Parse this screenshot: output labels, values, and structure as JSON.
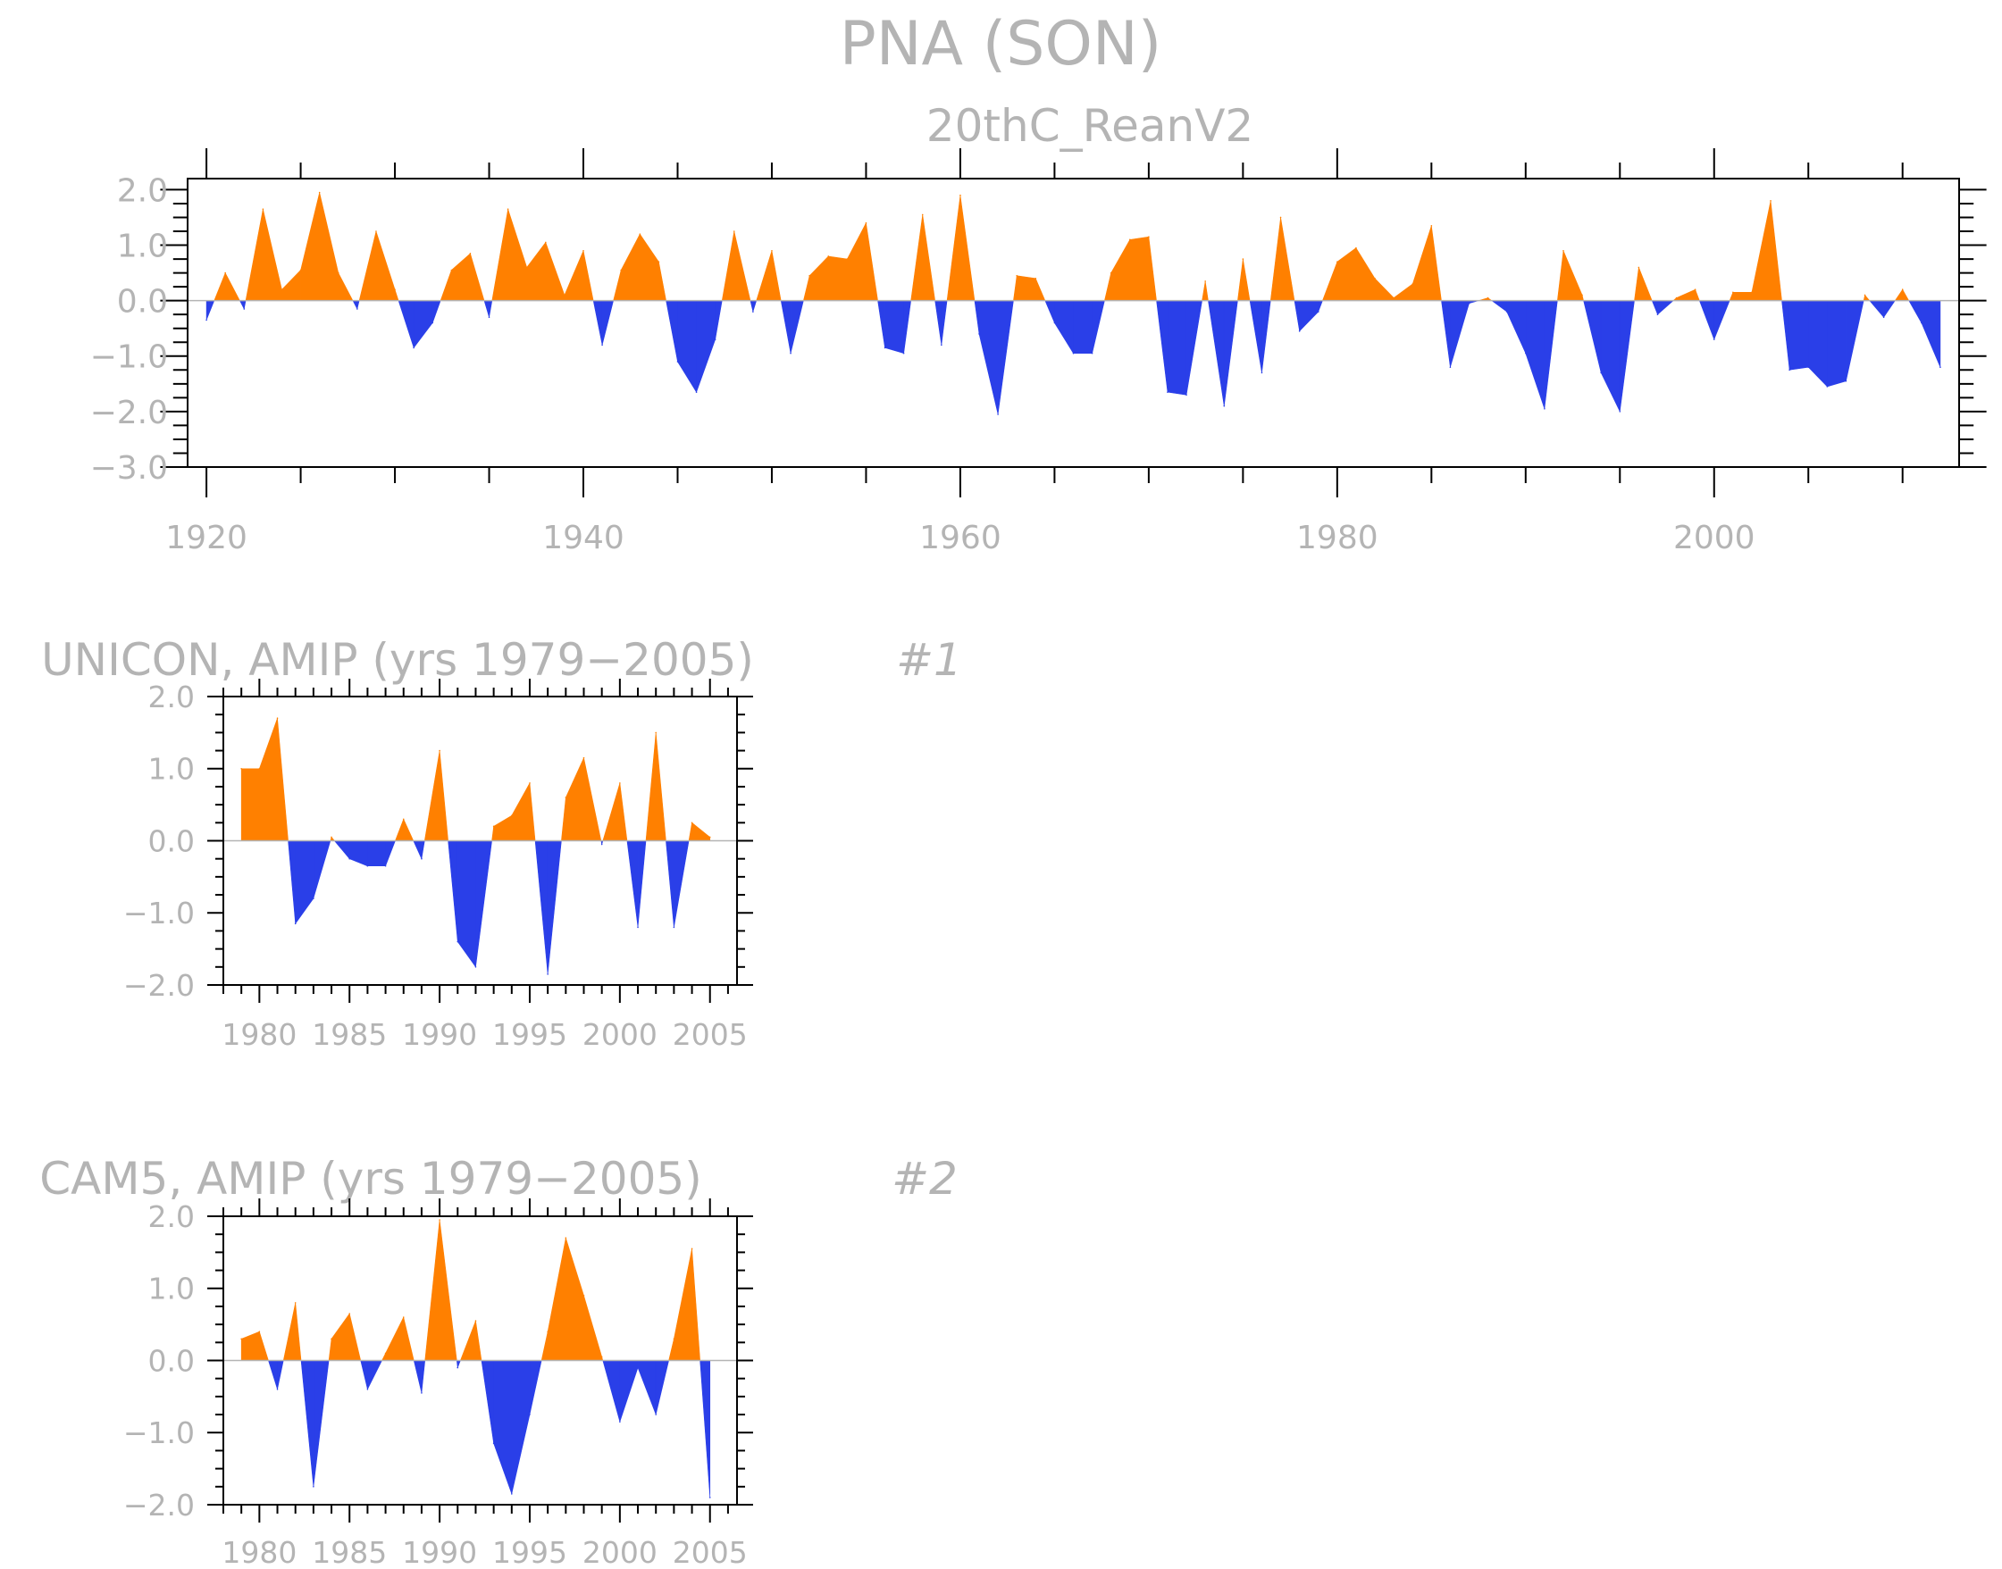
{
  "title": "PNA (SON)",
  "colors": {
    "positive": "#ff8000",
    "negative": "#2a3fe8",
    "text": "#b4b4b4",
    "axis": "#000000"
  },
  "chart_data": [
    {
      "type": "area",
      "title": "20thC_ReanV2",
      "panel_label": "",
      "xlim": [
        1919,
        2013
      ],
      "ylim": [
        -3.0,
        2.2
      ],
      "yticks": [
        "2.0",
        "1.0",
        "0.0",
        "−1.0",
        "−2.0",
        "−3.0"
      ],
      "ytick_values": [
        2.0,
        1.0,
        0.0,
        -1.0,
        -2.0,
        -3.0
      ],
      "xticks": [
        "1920",
        "1940",
        "1960",
        "1980",
        "2000"
      ],
      "xtick_values": [
        1920,
        1940,
        1960,
        1980,
        2000
      ],
      "x_start": 1920,
      "values": [
        -0.35,
        0.5,
        -0.15,
        1.65,
        0.2,
        0.55,
        1.95,
        0.5,
        -0.15,
        1.25,
        0.2,
        -0.85,
        -0.4,
        0.55,
        0.85,
        -0.3,
        1.65,
        0.6,
        1.05,
        0.1,
        0.9,
        -0.8,
        0.55,
        1.2,
        0.7,
        -1.1,
        -1.65,
        -0.7,
        1.25,
        -0.2,
        0.9,
        -0.95,
        0.45,
        0.8,
        0.75,
        1.4,
        -0.85,
        -0.95,
        1.55,
        -0.8,
        1.9,
        -0.6,
        -2.05,
        0.45,
        0.4,
        -0.4,
        -0.95,
        -0.95,
        0.5,
        1.1,
        1.15,
        -1.65,
        -1.7,
        0.35,
        -1.9,
        0.75,
        -1.3,
        1.5,
        -0.55,
        -0.2,
        0.7,
        0.95,
        0.4,
        0.05,
        0.3,
        1.35,
        -1.2,
        -0.05,
        0.05,
        -0.2,
        -0.95,
        -1.95,
        0.9,
        0.1,
        -1.3,
        -2.0,
        0.6,
        -0.25,
        0.05,
        0.2,
        -0.7,
        0.15,
        0.15,
        1.8,
        -1.25,
        -1.2,
        -1.55,
        -1.45,
        0.1,
        -0.3,
        0.2,
        -0.4,
        -1.2
      ]
    },
    {
      "type": "area",
      "title": "UNICON, AMIP (yrs 1979−2005)",
      "panel_label": "#1",
      "xlim": [
        1978,
        2006.5
      ],
      "ylim": [
        -2.0,
        2.0
      ],
      "yticks": [
        "2.0",
        "1.0",
        "0.0",
        "−1.0",
        "−2.0"
      ],
      "ytick_values": [
        2.0,
        1.0,
        0.0,
        -1.0,
        -2.0
      ],
      "xticks": [
        "1980",
        "1985",
        "1990",
        "1995",
        "2000",
        "2005"
      ],
      "xtick_values": [
        1980,
        1985,
        1990,
        1995,
        2000,
        2005
      ],
      "x_start": 1979,
      "values": [
        1.0,
        1.0,
        1.7,
        -1.15,
        -0.8,
        0.05,
        -0.25,
        -0.35,
        -0.35,
        0.3,
        -0.25,
        1.25,
        -1.4,
        -1.75,
        0.2,
        0.35,
        0.8,
        -1.85,
        0.6,
        1.15,
        -0.05,
        0.8,
        -1.2,
        1.5,
        -1.2,
        0.25,
        0.05
      ]
    },
    {
      "type": "area",
      "title": "CAM5, AMIP (yrs 1979−2005)",
      "panel_label": "#2",
      "xlim": [
        1978,
        2006.5
      ],
      "ylim": [
        -2.0,
        2.0
      ],
      "yticks": [
        "2.0",
        "1.0",
        "0.0",
        "−1.0",
        "−2.0"
      ],
      "ytick_values": [
        2.0,
        1.0,
        0.0,
        -1.0,
        -2.0
      ],
      "xticks": [
        "1980",
        "1985",
        "1990",
        "1995",
        "2000",
        "2005"
      ],
      "xtick_values": [
        1980,
        1985,
        1990,
        1995,
        2000,
        2005
      ],
      "x_start": 1979,
      "values": [
        0.3,
        0.4,
        -0.4,
        0.8,
        -1.75,
        0.3,
        0.65,
        -0.4,
        0.1,
        0.6,
        -0.45,
        1.95,
        -0.1,
        0.55,
        -1.15,
        -1.85,
        -0.75,
        0.4,
        1.7,
        0.9,
        0.05,
        -0.85,
        -0.1,
        -0.75,
        0.3,
        1.55,
        -1.9
      ]
    }
  ]
}
